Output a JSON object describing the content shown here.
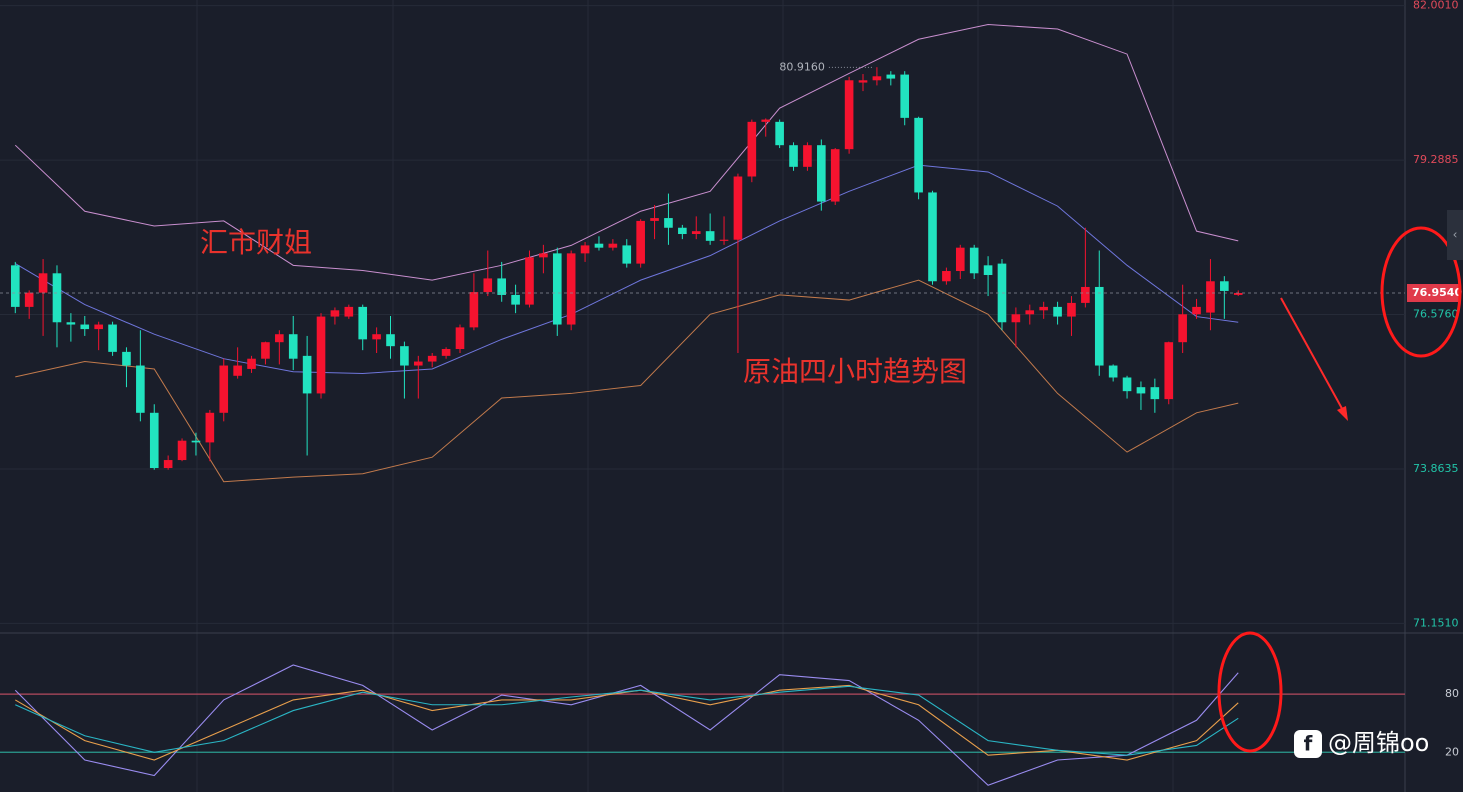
{
  "chart_data": [
    {
      "type": "candlestick",
      "up_color": "#f5132f",
      "down_color": "#22e3c0",
      "xlim": [
        -1.1,
        100
      ],
      "ylim": [
        71.0,
        82.1
      ],
      "yticks": [
        {
          "value": 82.001,
          "label": "82.0010"
        },
        {
          "value": 79.2885,
          "label": "79.2885"
        },
        {
          "value": 76.576,
          "label": "76.5760"
        },
        {
          "value": 73.8635,
          "label": "73.8635"
        },
        {
          "value": 71.151,
          "label": "71.1510"
        }
      ],
      "grid": true,
      "open": [
        77.44,
        76.71,
        76.96,
        77.3,
        76.44,
        76.4,
        76.32,
        76.4,
        75.92,
        75.68,
        74.85,
        73.88,
        74.02,
        74.36,
        74.33,
        74.85,
        75.5,
        75.62,
        75.8,
        76.09,
        76.23,
        75.85,
        75.19,
        76.54,
        76.54,
        76.71,
        76.14,
        76.23,
        76.02,
        75.68,
        75.75,
        75.85,
        75.97,
        76.35,
        76.97,
        77.21,
        76.92,
        76.75,
        77.58,
        77.65,
        76.4,
        77.65,
        77.82,
        77.75,
        77.79,
        77.47,
        78.22,
        78.27,
        78.1,
        77.99,
        78.04,
        77.87,
        77.89,
        79.0,
        79.96,
        79.96,
        79.55,
        79.17,
        79.55,
        78.56,
        79.48,
        80.65,
        80.69,
        80.79,
        80.79,
        80.03,
        78.72,
        77.16,
        77.34,
        77.75,
        77.44,
        77.47,
        76.44,
        76.58,
        76.65,
        76.71,
        76.54,
        76.78,
        77.06,
        75.68,
        75.47,
        75.3,
        75.3,
        75.09,
        76.09,
        76.58,
        76.61,
        77.16,
        76.92
      ],
      "high": [
        77.5,
        77.0,
        77.55,
        77.44,
        76.6,
        76.55,
        76.45,
        76.45,
        76.0,
        76.3,
        75.0,
        74.1,
        74.4,
        74.5,
        74.9,
        75.8,
        76.0,
        75.85,
        76.1,
        76.3,
        76.55,
        76.2,
        76.6,
        76.7,
        76.75,
        76.75,
        76.35,
        76.55,
        76.1,
        75.85,
        75.9,
        76.0,
        76.4,
        77.3,
        77.7,
        77.5,
        77.1,
        77.7,
        77.8,
        77.75,
        77.7,
        77.85,
        77.95,
        77.9,
        77.9,
        78.25,
        78.5,
        78.7,
        78.15,
        78.3,
        78.35,
        78.3,
        79.05,
        80.0,
        80.02,
        80.0,
        79.6,
        79.6,
        79.65,
        79.5,
        80.75,
        80.8,
        80.92,
        80.85,
        80.85,
        80.05,
        78.75,
        77.4,
        77.8,
        77.8,
        77.6,
        77.55,
        76.7,
        76.75,
        76.8,
        76.8,
        76.9,
        78.1,
        77.7,
        75.7,
        75.5,
        75.4,
        75.45,
        76.1,
        77.1,
        76.85,
        77.55,
        77.25,
        77.0
      ],
      "low": [
        76.6,
        76.5,
        76.2,
        76.0,
        76.1,
        76.2,
        75.95,
        75.85,
        75.3,
        74.7,
        73.85,
        73.85,
        74.0,
        74.1,
        74.0,
        74.7,
        75.45,
        75.55,
        75.7,
        75.7,
        75.6,
        74.1,
        75.1,
        76.4,
        76.5,
        75.95,
        75.9,
        75.8,
        75.1,
        75.1,
        75.65,
        75.8,
        75.9,
        76.3,
        76.9,
        76.8,
        76.6,
        76.7,
        77.3,
        76.2,
        76.3,
        77.5,
        77.7,
        77.7,
        77.4,
        77.4,
        77.9,
        77.8,
        77.9,
        77.9,
        77.8,
        77.8,
        75.9,
        78.9,
        79.7,
        79.5,
        79.1,
        79.1,
        78.4,
        78.5,
        79.4,
        80.5,
        80.6,
        80.6,
        79.9,
        78.6,
        77.1,
        77.1,
        77.2,
        77.2,
        76.9,
        76.3,
        76.0,
        76.4,
        76.5,
        76.4,
        76.2,
        76.7,
        75.5,
        75.4,
        75.1,
        74.9,
        74.85,
        75.0,
        75.9,
        76.5,
        76.3,
        76.5,
        76.9
      ],
      "close": [
        76.71,
        76.96,
        77.3,
        76.44,
        76.4,
        76.32,
        76.4,
        75.92,
        75.68,
        74.85,
        73.88,
        74.02,
        74.36,
        74.33,
        74.85,
        75.68,
        75.68,
        75.8,
        76.09,
        76.23,
        75.8,
        75.19,
        76.54,
        76.65,
        76.71,
        76.14,
        76.23,
        76.02,
        75.68,
        75.75,
        75.85,
        75.97,
        76.35,
        76.97,
        77.21,
        76.92,
        76.75,
        77.58,
        77.65,
        76.4,
        77.65,
        77.79,
        77.75,
        77.82,
        77.47,
        78.22,
        78.27,
        78.1,
        77.99,
        78.04,
        77.87,
        77.89,
        79.0,
        79.96,
        80.0,
        79.55,
        79.17,
        79.55,
        78.56,
        79.48,
        80.69,
        80.69,
        80.76,
        80.72,
        80.03,
        78.72,
        77.16,
        77.34,
        77.75,
        77.3,
        77.27,
        76.44,
        76.58,
        76.65,
        76.71,
        76.54,
        76.78,
        77.06,
        75.68,
        75.47,
        75.23,
        75.19,
        75.09,
        76.09,
        76.58,
        76.71,
        77.16,
        76.99,
        76.954
      ],
      "bands": {
        "x": [
          0,
          5,
          10,
          15,
          20,
          25,
          30,
          35,
          40,
          45,
          50,
          55,
          60,
          65,
          70,
          75,
          80,
          85,
          88
        ],
        "series": [
          {
            "color": "#c98fcf",
            "values": [
              79.55,
              78.39,
              78.13,
              78.22,
              77.44,
              77.35,
              77.18,
              77.44,
              77.79,
              78.39,
              78.74,
              80.2,
              80.81,
              81.41,
              81.67,
              81.59,
              81.15,
              78.04,
              77.87
            ]
          },
          {
            "color": "#6f76dc",
            "values": [
              77.47,
              76.75,
              76.23,
              75.8,
              75.57,
              75.54,
              75.62,
              76.14,
              76.58,
              77.18,
              77.61,
              78.22,
              78.74,
              79.2,
              79.08,
              78.48,
              77.44,
              76.54,
              76.44
            ]
          },
          {
            "color": "#c27a4c",
            "values": [
              75.48,
              75.75,
              75.62,
              73.64,
              73.72,
              73.78,
              74.07,
              75.11,
              75.19,
              75.33,
              76.58,
              76.92,
              76.83,
              77.18,
              76.58,
              75.19,
              74.16,
              74.85,
              75.02
            ]
          }
        ]
      },
      "high_label": {
        "index": 62,
        "value": 80.916,
        "label": "80.9160"
      },
      "last_price": {
        "value": 76.954,
        "label": "76.9540"
      },
      "annotations": [
        "汇市财姐",
        "原油四小时趋势图"
      ]
    },
    {
      "type": "line",
      "xlim": [
        -1.1,
        100
      ],
      "ylim": [
        -21,
        142
      ],
      "yticks": [
        80,
        20
      ],
      "ytick_colors": [
        "#b44a5e",
        "#2a9d8f"
      ],
      "x": [
        0,
        5,
        10,
        15,
        20,
        25,
        30,
        35,
        40,
        45,
        50,
        55,
        60,
        65,
        70,
        75,
        80,
        85,
        88
      ],
      "series": [
        {
          "color": "#9a8cf0",
          "values": [
            84,
            12,
            -4,
            74,
            110,
            89,
            43,
            79,
            69,
            89,
            43,
            100,
            94,
            53,
            -14,
            12,
            17,
            53,
            102
          ]
        },
        {
          "color": "#e89f4c",
          "values": [
            74,
            32,
            12,
            43,
            74,
            84,
            63,
            74,
            74,
            84,
            69,
            84,
            89,
            69,
            17,
            22,
            12,
            32,
            71
          ]
        },
        {
          "color": "#2ab5c4",
          "values": [
            69,
            37,
            20,
            32,
            63,
            82,
            69,
            69,
            77,
            84,
            74,
            82,
            88,
            79,
            32,
            22,
            17,
            27,
            55
          ]
        }
      ]
    }
  ],
  "watermark": "@周锦oo"
}
